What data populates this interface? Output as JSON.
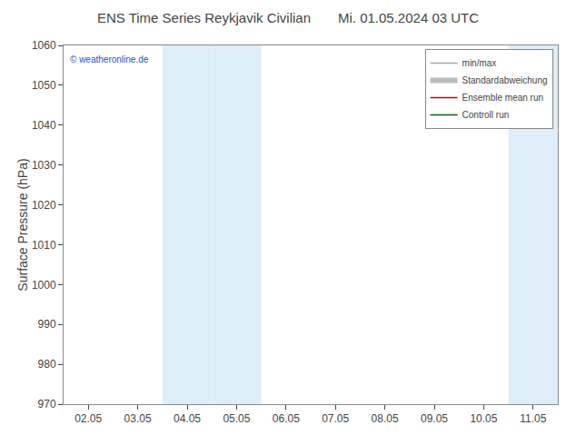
{
  "chart_data": {
    "type": "line",
    "title": "ENS Time Series Reykjavik Civilian",
    "subtitle": "Mi. 01.05.2024 03 UTC",
    "y_label": "Surface Pressure (hPa)",
    "categories": [
      "02.05",
      "03.05",
      "04.05",
      "05.05",
      "06.05",
      "07.05",
      "08.05",
      "09.05",
      "10.05",
      "11.05"
    ],
    "series": [
      {
        "name": "min/max",
        "color": "#aaaaaa",
        "values": [
          null,
          null,
          null,
          null,
          null,
          null,
          null,
          null,
          null,
          null
        ]
      },
      {
        "name": "Standardabweichung",
        "color": "#bbbbbb",
        "values": [
          null,
          null,
          null,
          null,
          null,
          null,
          null,
          null,
          null,
          null
        ]
      },
      {
        "name": "Ensemble mean run",
        "color": "#cc0000",
        "values": [
          null,
          null,
          null,
          null,
          null,
          null,
          null,
          null,
          null,
          null
        ]
      },
      {
        "name": "Controll run",
        "color": "#006600",
        "values": [
          null,
          null,
          null,
          null,
          null,
          null,
          null,
          null,
          null,
          null
        ]
      }
    ],
    "shaded": {
      "categories": [
        "04.05",
        "05.05",
        "11.05"
      ],
      "color": "#ddeef8"
    },
    "annotations": [
      "© weatheronline.de"
    ],
    "ylim": [
      970,
      1060
    ],
    "yticks": [
      970,
      980,
      990,
      1000,
      1010,
      1020,
      1030,
      1040,
      1050,
      1060
    ],
    "grid": false,
    "legend": "upper right"
  }
}
